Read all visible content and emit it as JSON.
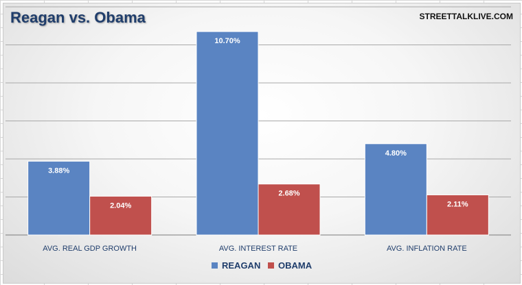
{
  "chart_data": {
    "type": "bar",
    "title": "Reagan vs. Obama",
    "source": "STREETTALKLIVE.COM",
    "categories": [
      "AVG. REAL GDP GROWTH",
      "AVG. INTEREST RATE",
      "AVG. INFLATION RATE"
    ],
    "series": [
      {
        "name": "REAGAN",
        "values": [
          3.88,
          10.7,
          4.8
        ],
        "labels": [
          "3.88%",
          "10.70%",
          "4.80%"
        ],
        "color": "#5a84c2"
      },
      {
        "name": "OBAMA",
        "values": [
          2.04,
          2.68,
          2.11
        ],
        "labels": [
          "2.04%",
          "2.68%",
          "2.11%"
        ],
        "color": "#c0504d"
      }
    ],
    "ylim": [
      0,
      12
    ],
    "grid": true,
    "legend": "bottom",
    "xlabel": "",
    "ylabel": ""
  }
}
